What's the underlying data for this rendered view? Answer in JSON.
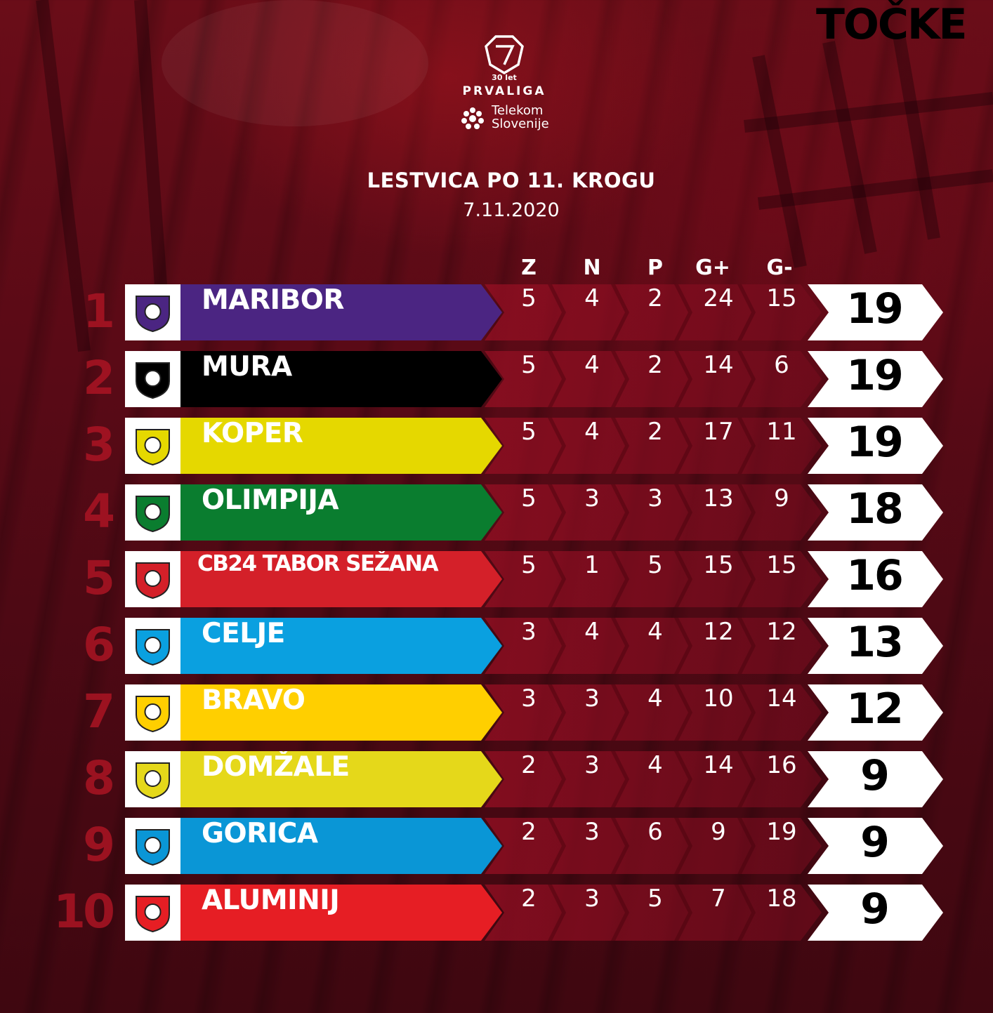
{
  "league": {
    "anniversary": "30 let",
    "name": "PRVALIGA",
    "sponsor": "Telekom Slovenije"
  },
  "title": "LESTVICA PO 11. KROGU",
  "date": "7.11.2020",
  "columns": [
    "Z",
    "N",
    "P",
    "G+",
    "G-",
    "TOČKE"
  ],
  "colors": {
    "background": "#5a0a16",
    "rank": "#aa1423",
    "points_box": "#ffffff"
  },
  "standings": [
    {
      "rank": "1",
      "team": "MARIBOR",
      "color": "#4b2582",
      "logo_icon": "maribor-crest-icon",
      "z": "5",
      "n": "4",
      "p": "2",
      "g_plus": "24",
      "g_minus": "15",
      "points": "19"
    },
    {
      "rank": "2",
      "team": "MURA",
      "color": "#000000",
      "logo_icon": "mura-crest-icon",
      "z": "5",
      "n": "4",
      "p": "2",
      "g_plus": "14",
      "g_minus": "6",
      "points": "19"
    },
    {
      "rank": "3",
      "team": "KOPER",
      "color": "#e5d800",
      "logo_icon": "koper-crest-icon",
      "z": "5",
      "n": "4",
      "p": "2",
      "g_plus": "17",
      "g_minus": "11",
      "points": "19"
    },
    {
      "rank": "4",
      "team": "OLIMPIJA",
      "color": "#0a7d2f",
      "logo_icon": "olimpija-crest-icon",
      "z": "5",
      "n": "3",
      "p": "3",
      "g_plus": "13",
      "g_minus": "9",
      "points": "18"
    },
    {
      "rank": "5",
      "team": "CB24 TABOR SEŽANA",
      "color": "#d42029",
      "logo_icon": "tabor-crest-icon",
      "z": "5",
      "n": "1",
      "p": "5",
      "g_plus": "15",
      "g_minus": "15",
      "points": "16"
    },
    {
      "rank": "6",
      "team": "CELJE",
      "color": "#0aa0e0",
      "logo_icon": "celje-crest-icon",
      "z": "3",
      "n": "4",
      "p": "4",
      "g_plus": "12",
      "g_minus": "12",
      "points": "13"
    },
    {
      "rank": "7",
      "team": "BRAVO",
      "color": "#ffcf00",
      "logo_icon": "bravo-crest-icon",
      "z": "3",
      "n": "3",
      "p": "4",
      "g_plus": "10",
      "g_minus": "14",
      "points": "12"
    },
    {
      "rank": "8",
      "team": "DOMŽALE",
      "color": "#e5d81a",
      "logo_icon": "domzale-crest-icon",
      "z": "2",
      "n": "3",
      "p": "4",
      "g_plus": "14",
      "g_minus": "16",
      "points": "9"
    },
    {
      "rank": "9",
      "team": "GORICA",
      "color": "#0a96d6",
      "logo_icon": "gorica-crest-icon",
      "z": "2",
      "n": "3",
      "p": "6",
      "g_plus": "9",
      "g_minus": "19",
      "points": "9"
    },
    {
      "rank": "10",
      "team": "ALUMINIJ",
      "color": "#e61e24",
      "logo_icon": "aluminij-crest-icon",
      "z": "2",
      "n": "3",
      "p": "5",
      "g_plus": "7",
      "g_minus": "18",
      "points": "9"
    }
  ]
}
